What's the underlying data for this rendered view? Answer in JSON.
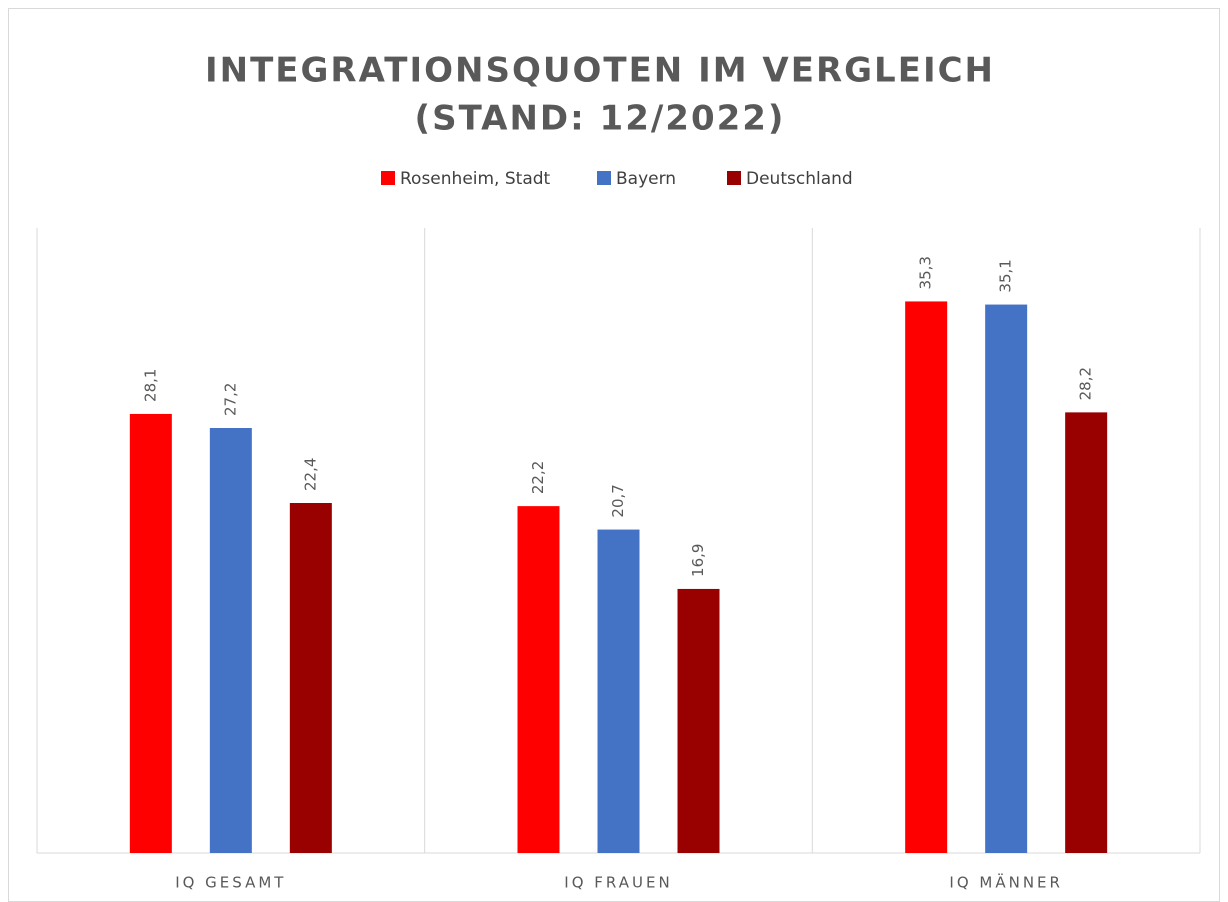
{
  "chart_data": {
    "type": "bar",
    "title": [
      "INTEGRATIONSQUOTEN IM VERGLEICH",
      "(STAND: 12/2022)"
    ],
    "categories": [
      "IQ GESAMT",
      "IQ FRAUEN",
      "IQ MÄNNER"
    ],
    "series": [
      {
        "name": "Rosenheim, Stadt",
        "color": "#ff0000",
        "values": [
          28.1,
          22.2,
          35.3
        ],
        "value_labels": [
          "28,1",
          "22,2",
          "35,3"
        ]
      },
      {
        "name": "Bayern",
        "color": "#4472c4",
        "values": [
          27.2,
          20.7,
          35.1
        ],
        "value_labels": [
          "27,2",
          "20,7",
          "35,1"
        ]
      },
      {
        "name": "Deutschland",
        "color": "#990000",
        "values": [
          22.4,
          16.9,
          28.2
        ],
        "value_labels": [
          "22,4",
          "16,9",
          "28,2"
        ]
      }
    ],
    "ylim": [
      0,
      40
    ],
    "legend": "top"
  }
}
